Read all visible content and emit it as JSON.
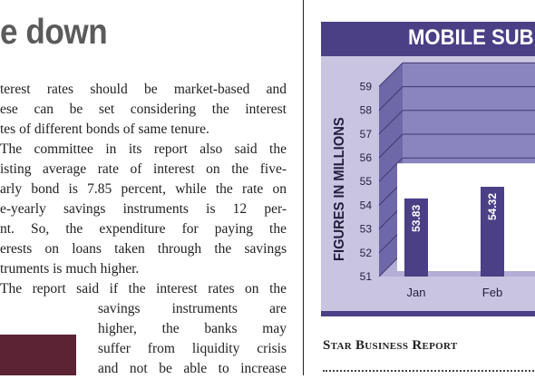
{
  "article": {
    "headline": "e down",
    "lines": [
      "terest rates should be market-based and",
      "ese can be set considering the interest",
      "tes of different bonds of same tenure.",
      "The committee in its report also said the",
      "isting average rate of interest on the five-",
      "arly bond is 7.85 percent, while the rate on",
      "e-yearly savings instruments is 12 per-",
      "nt. So, the expenditure for paying the",
      "erests on loans taken through the savings",
      "truments is much higher.",
      "The report said if the interest rates on the",
      "savings instruments are",
      "higher, the banks may",
      "suffer from liquidity crisis",
      "and not be able to increase"
    ]
  },
  "chart": {
    "title": "MOBILE SUB",
    "ylabel": "FIGURES IN MILLIONS",
    "byline": "Star Business Report"
  },
  "chart_data": {
    "type": "bar",
    "title": "MOBILE SUB",
    "xlabel": "",
    "ylabel": "FIGURES IN MILLIONS",
    "ylim": [
      51,
      59
    ],
    "yticks": [
      51,
      52,
      53,
      54,
      55,
      56,
      57,
      58,
      59
    ],
    "categories": [
      "Jan",
      "Feb"
    ],
    "values": [
      53.83,
      54.32
    ],
    "grid": true,
    "colors": {
      "bar": "#4b3f86",
      "panel": "#c9c4e0",
      "back_wall": "#8b85bf"
    }
  }
}
